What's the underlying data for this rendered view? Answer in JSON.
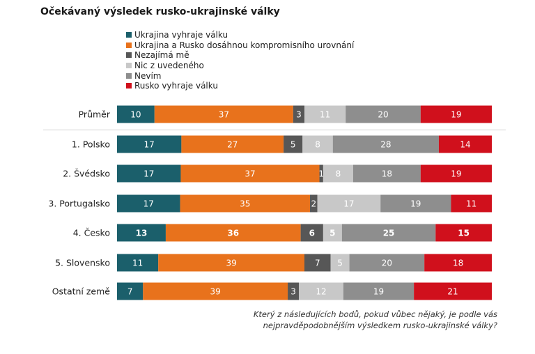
{
  "title": "Očekávaný výsledek rusko-ukrajinské války",
  "footnote": [
    "Který z následujících bodů, pokud vůbec nějaký, je podle vás",
    "nejpravděpodobnějším výsledkem rusko-ukrajinské války?"
  ],
  "colors": {
    "separator": "#d0d0d0"
  },
  "chart_data": {
    "type": "bar",
    "orientation": "horizontal",
    "stacked": true,
    "normalized": true,
    "categories": [
      "Průměr",
      "1. Polsko",
      "2. Švédsko",
      "3. Portugalsko",
      "4. Česko",
      "5. Slovensko",
      "Ostatní země"
    ],
    "highlight_category": "4. Česko",
    "series": [
      {
        "name": "Ukrajina vyhraje válku",
        "color": "#1b5f6b",
        "label_color": "#ffffff",
        "values": [
          10,
          17,
          17,
          17,
          13,
          11,
          7
        ]
      },
      {
        "name": "Ukrajina a Rusko dosáhnou kompromisního urovnání",
        "color": "#e8721c",
        "label_color": "#ffffff",
        "values": [
          37,
          27,
          37,
          35,
          36,
          39,
          39
        ]
      },
      {
        "name": "Nezajímá mě",
        "color": "#575757",
        "label_color": "#ffffff",
        "values": [
          3,
          5,
          1,
          2,
          6,
          7,
          3
        ]
      },
      {
        "name": "Nic z uvedeného",
        "color": "#c8c8c8",
        "label_color": "#ffffff",
        "values": [
          11,
          8,
          8,
          17,
          5,
          5,
          12
        ]
      },
      {
        "name": "Nevím",
        "color": "#8e8e8e",
        "label_color": "#ffffff",
        "values": [
          20,
          28,
          18,
          19,
          25,
          20,
          19
        ]
      },
      {
        "name": "Rusko vyhraje válku",
        "color": "#d0101c",
        "label_color": "#ffffff",
        "values": [
          19,
          14,
          19,
          11,
          15,
          18,
          21
        ]
      }
    ],
    "legend_position": "top-left",
    "grid": false
  }
}
